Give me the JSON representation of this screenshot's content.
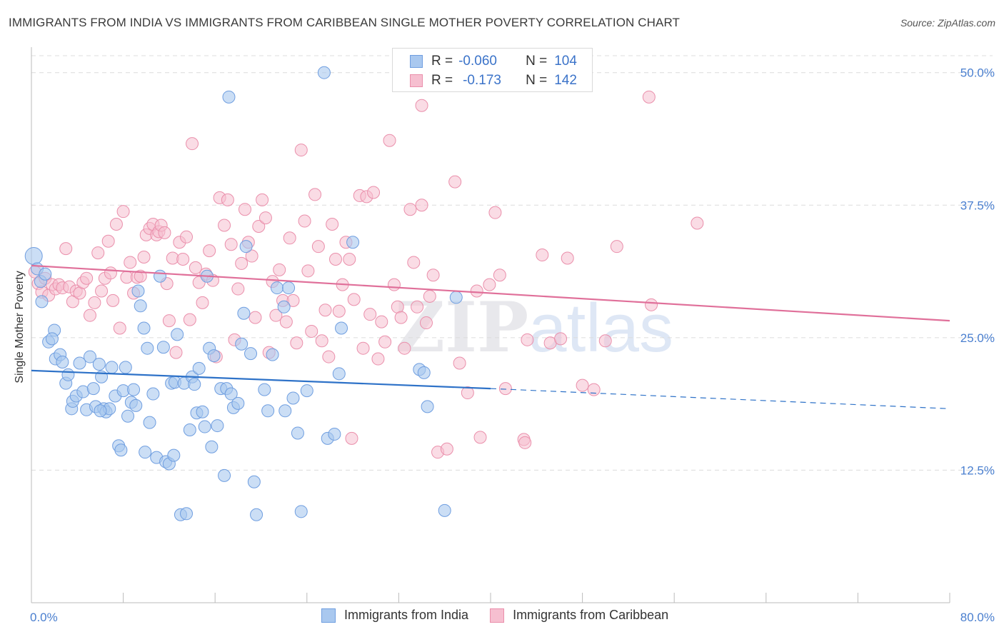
{
  "header": {
    "title": "IMMIGRANTS FROM INDIA VS IMMIGRANTS FROM CARIBBEAN SINGLE MOTHER POVERTY CORRELATION CHART",
    "source": "Source: ZipAtlas.com"
  },
  "watermark": {
    "zip": "ZIP",
    "atlas": "atlas"
  },
  "colors": {
    "india_fill": "#a9c8ef",
    "india_stroke": "#6f9ee0",
    "india_line": "#2e72c8",
    "carib_fill": "#f6bfd0",
    "carib_stroke": "#ea8fab",
    "carib_line": "#e0709a",
    "grid": "#dcdcdc",
    "tick_text": "#4a7fcf"
  },
  "legend_top": {
    "rows": [
      {
        "r_label": "R =",
        "r_value": "-0.060",
        "n_label": "N =",
        "n_value": "104"
      },
      {
        "r_label": "R =",
        "r_value": "-0.173",
        "n_label": "N =",
        "n_value": "142"
      }
    ]
  },
  "legend_bottom": {
    "india": "Immigrants from India",
    "caribbean": "Immigrants from Caribbean"
  },
  "chart_data": {
    "type": "scatter",
    "title": "IMMIGRANTS FROM INDIA VS IMMIGRANTS FROM CARIBBEAN SINGLE MOTHER POVERTY CORRELATION CHART",
    "xlabel": "",
    "ylabel": "Single Mother Poverty",
    "xlim": [
      0,
      80
    ],
    "ylim": [
      0,
      52
    ],
    "x_tick_labels": [
      "0.0%",
      "80.0%"
    ],
    "y_ticks": [
      12.5,
      25.0,
      37.5,
      50.0
    ],
    "y_tick_labels": [
      "12.5%",
      "25.0%",
      "37.5%",
      "50.0%"
    ],
    "grid": true,
    "legend_placement": "top-center",
    "series": [
      {
        "name": "Immigrants from India",
        "R": -0.06,
        "N": 104,
        "trend": {
          "x0": 0,
          "y0": 21.9,
          "x1": 40,
          "y1": 20.2,
          "dashed_to_x": 80,
          "dashed_to_y": 18.3
        },
        "points": [
          [
            0.2,
            32.7
          ],
          [
            0.5,
            31.5
          ],
          [
            0.8,
            30.3
          ],
          [
            1.2,
            31.0
          ],
          [
            0.9,
            28.4
          ],
          [
            1.5,
            24.6
          ],
          [
            2.0,
            25.7
          ],
          [
            1.8,
            24.9
          ],
          [
            2.1,
            23.0
          ],
          [
            2.5,
            23.4
          ],
          [
            2.7,
            22.7
          ],
          [
            3.0,
            20.7
          ],
          [
            3.2,
            21.5
          ],
          [
            3.5,
            18.3
          ],
          [
            3.6,
            19.0
          ],
          [
            3.9,
            19.5
          ],
          [
            4.2,
            22.6
          ],
          [
            4.5,
            19.9
          ],
          [
            4.8,
            18.2
          ],
          [
            5.1,
            23.2
          ],
          [
            5.4,
            20.2
          ],
          [
            5.6,
            18.5
          ],
          [
            5.9,
            22.5
          ],
          [
            6.1,
            21.3
          ],
          [
            6.3,
            18.3
          ],
          [
            6.5,
            18.0
          ],
          [
            6.8,
            18.3
          ],
          [
            7.0,
            22.2
          ],
          [
            7.3,
            19.5
          ],
          [
            7.6,
            14.8
          ],
          [
            7.8,
            14.4
          ],
          [
            8.0,
            20.0
          ],
          [
            8.2,
            22.2
          ],
          [
            8.4,
            17.6
          ],
          [
            8.7,
            18.9
          ],
          [
            8.9,
            20.1
          ],
          [
            9.1,
            18.6
          ],
          [
            9.3,
            29.4
          ],
          [
            9.5,
            28.0
          ],
          [
            9.8,
            25.9
          ],
          [
            9.9,
            14.2
          ],
          [
            10.1,
            24.0
          ],
          [
            10.3,
            17.0
          ],
          [
            10.6,
            19.7
          ],
          [
            10.9,
            13.7
          ],
          [
            11.2,
            30.8
          ],
          [
            11.5,
            24.1
          ],
          [
            11.7,
            13.3
          ],
          [
            12.0,
            13.1
          ],
          [
            12.2,
            20.7
          ],
          [
            12.5,
            20.8
          ],
          [
            12.7,
            25.3
          ],
          [
            13.0,
            8.3
          ],
          [
            13.3,
            20.7
          ],
          [
            13.5,
            8.4
          ],
          [
            13.8,
            16.3
          ],
          [
            14.0,
            21.3
          ],
          [
            14.2,
            20.6
          ],
          [
            14.4,
            17.9
          ],
          [
            14.6,
            22.1
          ],
          [
            14.9,
            18.0
          ],
          [
            15.1,
            16.6
          ],
          [
            15.3,
            30.8
          ],
          [
            15.5,
            24.0
          ],
          [
            15.7,
            14.7
          ],
          [
            15.9,
            23.3
          ],
          [
            16.2,
            16.7
          ],
          [
            16.5,
            20.2
          ],
          [
            16.8,
            12.0
          ],
          [
            17.0,
            20.2
          ],
          [
            17.2,
            47.7
          ],
          [
            17.4,
            19.7
          ],
          [
            17.6,
            18.4
          ],
          [
            18.0,
            18.8
          ],
          [
            18.3,
            24.4
          ],
          [
            18.5,
            27.3
          ],
          [
            18.7,
            33.6
          ],
          [
            19.1,
            23.5
          ],
          [
            19.4,
            11.4
          ],
          [
            19.6,
            8.3
          ],
          [
            20.3,
            20.1
          ],
          [
            20.6,
            18.1
          ],
          [
            21.0,
            23.4
          ],
          [
            21.4,
            29.7
          ],
          [
            22.0,
            27.9
          ],
          [
            22.1,
            18.1
          ],
          [
            22.4,
            29.7
          ],
          [
            22.8,
            19.3
          ],
          [
            23.5,
            8.6
          ],
          [
            24.0,
            20.0
          ],
          [
            25.5,
            50.0
          ],
          [
            25.8,
            15.5
          ],
          [
            26.4,
            15.9
          ],
          [
            26.8,
            21.6
          ],
          [
            27.0,
            25.9
          ],
          [
            28.0,
            34.0
          ],
          [
            33.8,
            22.0
          ],
          [
            34.2,
            21.7
          ],
          [
            34.5,
            18.5
          ],
          [
            36.0,
            8.7
          ],
          [
            37.0,
            28.8
          ],
          [
            6.0,
            18.1
          ],
          [
            12.4,
            13.9
          ],
          [
            23.2,
            16.0
          ]
        ]
      },
      {
        "name": "Immigrants from Caribbean",
        "R": -0.173,
        "N": 142,
        "trend": {
          "x0": 0,
          "y0": 31.8,
          "x1": 80,
          "y1": 26.6
        },
        "points": [
          [
            0.3,
            31.2
          ],
          [
            0.6,
            30.1
          ],
          [
            0.9,
            29.3
          ],
          [
            1.2,
            30.6
          ],
          [
            1.5,
            29.0
          ],
          [
            1.8,
            30.0
          ],
          [
            2.1,
            29.6
          ],
          [
            2.4,
            30.0
          ],
          [
            2.7,
            29.7
          ],
          [
            3.0,
            33.4
          ],
          [
            3.3,
            29.8
          ],
          [
            3.6,
            28.4
          ],
          [
            3.9,
            29.4
          ],
          [
            4.2,
            29.2
          ],
          [
            4.5,
            30.2
          ],
          [
            4.8,
            30.6
          ],
          [
            5.1,
            27.1
          ],
          [
            5.5,
            28.3
          ],
          [
            5.8,
            33.0
          ],
          [
            6.1,
            29.4
          ],
          [
            6.4,
            30.6
          ],
          [
            6.7,
            34.1
          ],
          [
            6.9,
            31.1
          ],
          [
            7.1,
            28.5
          ],
          [
            7.4,
            35.7
          ],
          [
            7.7,
            25.9
          ],
          [
            8.0,
            36.9
          ],
          [
            8.3,
            30.7
          ],
          [
            8.6,
            32.1
          ],
          [
            8.9,
            29.2
          ],
          [
            9.2,
            30.7
          ],
          [
            9.5,
            30.8
          ],
          [
            9.8,
            32.6
          ],
          [
            10.0,
            34.7
          ],
          [
            10.3,
            35.3
          ],
          [
            10.6,
            35.7
          ],
          [
            10.9,
            34.7
          ],
          [
            11.1,
            35.0
          ],
          [
            11.3,
            35.6
          ],
          [
            11.6,
            34.9
          ],
          [
            11.8,
            30.1
          ],
          [
            12.0,
            26.6
          ],
          [
            12.3,
            32.5
          ],
          [
            12.6,
            23.6
          ],
          [
            12.9,
            34.0
          ],
          [
            13.2,
            32.4
          ],
          [
            13.5,
            34.5
          ],
          [
            13.8,
            26.7
          ],
          [
            14.0,
            43.3
          ],
          [
            14.3,
            31.6
          ],
          [
            14.6,
            30.2
          ],
          [
            14.9,
            28.3
          ],
          [
            15.2,
            31.0
          ],
          [
            15.5,
            33.2
          ],
          [
            15.8,
            30.4
          ],
          [
            16.1,
            23.2
          ],
          [
            16.4,
            38.2
          ],
          [
            16.8,
            35.6
          ],
          [
            17.1,
            38.0
          ],
          [
            17.4,
            33.8
          ],
          [
            17.7,
            24.8
          ],
          [
            18.0,
            29.6
          ],
          [
            18.3,
            32.0
          ],
          [
            18.6,
            37.1
          ],
          [
            18.9,
            34.0
          ],
          [
            19.2,
            32.7
          ],
          [
            19.5,
            26.9
          ],
          [
            19.8,
            35.5
          ],
          [
            20.1,
            38.0
          ],
          [
            20.4,
            36.3
          ],
          [
            20.7,
            23.6
          ],
          [
            21.0,
            30.3
          ],
          [
            21.3,
            27.1
          ],
          [
            21.6,
            31.4
          ],
          [
            21.9,
            28.5
          ],
          [
            22.2,
            26.5
          ],
          [
            22.5,
            34.4
          ],
          [
            22.8,
            28.5
          ],
          [
            23.1,
            24.5
          ],
          [
            23.5,
            42.7
          ],
          [
            23.8,
            36.0
          ],
          [
            24.1,
            31.3
          ],
          [
            24.4,
            25.6
          ],
          [
            24.7,
            38.5
          ],
          [
            25.0,
            33.6
          ],
          [
            25.3,
            24.7
          ],
          [
            25.6,
            27.6
          ],
          [
            25.9,
            23.2
          ],
          [
            26.2,
            35.7
          ],
          [
            26.5,
            32.4
          ],
          [
            26.8,
            27.5
          ],
          [
            27.1,
            30.0
          ],
          [
            27.4,
            34.0
          ],
          [
            27.7,
            32.4
          ],
          [
            28.1,
            28.6
          ],
          [
            28.6,
            38.4
          ],
          [
            28.9,
            24.0
          ],
          [
            29.2,
            38.3
          ],
          [
            29.5,
            27.2
          ],
          [
            29.8,
            38.7
          ],
          [
            30.2,
            23.0
          ],
          [
            30.5,
            26.5
          ],
          [
            30.8,
            24.6
          ],
          [
            31.2,
            43.6
          ],
          [
            31.6,
            30.0
          ],
          [
            31.9,
            27.9
          ],
          [
            32.2,
            26.9
          ],
          [
            32.5,
            24.0
          ],
          [
            33.0,
            37.1
          ],
          [
            33.3,
            32.1
          ],
          [
            33.6,
            27.9
          ],
          [
            34.0,
            37.5
          ],
          [
            34.4,
            26.4
          ],
          [
            34.7,
            28.9
          ],
          [
            35.0,
            30.9
          ],
          [
            35.4,
            14.2
          ],
          [
            36.2,
            14.5
          ],
          [
            36.9,
            39.7
          ],
          [
            37.3,
            22.6
          ],
          [
            38.0,
            19.8
          ],
          [
            38.8,
            29.4
          ],
          [
            39.1,
            15.6
          ],
          [
            39.9,
            30.0
          ],
          [
            40.4,
            36.8
          ],
          [
            40.8,
            30.9
          ],
          [
            41.3,
            20.2
          ],
          [
            42.9,
            15.4
          ],
          [
            43.2,
            24.8
          ],
          [
            44.5,
            32.8
          ],
          [
            45.2,
            24.5
          ],
          [
            46.1,
            24.9
          ],
          [
            46.7,
            32.5
          ],
          [
            48.0,
            20.5
          ],
          [
            49.0,
            20.1
          ],
          [
            50.0,
            24.7
          ],
          [
            51.0,
            33.6
          ],
          [
            53.8,
            47.7
          ],
          [
            54.0,
            28.1
          ],
          [
            58.0,
            35.8
          ],
          [
            34.0,
            46.9
          ],
          [
            43.0,
            15.1
          ],
          [
            27.9,
            15.5
          ]
        ]
      }
    ]
  }
}
